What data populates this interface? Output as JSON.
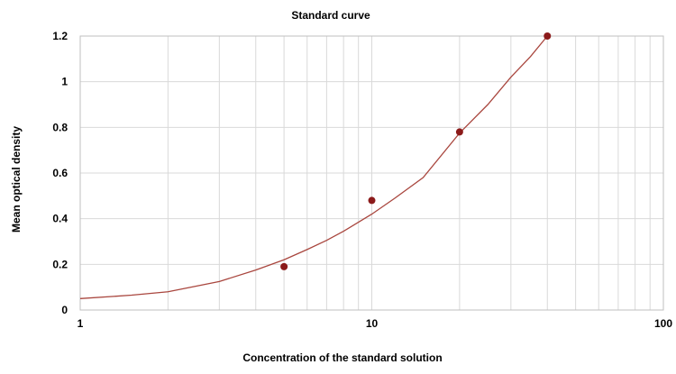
{
  "chart_data": {
    "type": "scatter",
    "title": "Standard curve",
    "xlabel": "Concentration of the standard solution",
    "ylabel": "Mean optical density",
    "x_scale": "log",
    "xlim": [
      1,
      100
    ],
    "ylim": [
      0,
      1.2
    ],
    "x_ticks": [
      1,
      10,
      100
    ],
    "x_tick_labels": [
      "1",
      "10",
      "100"
    ],
    "y_ticks": [
      0,
      0.2,
      0.4,
      0.6,
      0.8,
      1.0,
      1.2
    ],
    "y_tick_labels": [
      "0",
      "0.2",
      "0.4",
      "0.6",
      "0.8",
      "1",
      "1.2"
    ],
    "grid": true,
    "legend": "none",
    "colors": {
      "points": "#8b1a1a",
      "curve": "#a9463e",
      "grid": "#d9d9d9"
    },
    "series": [
      {
        "x": [
          5,
          10,
          20,
          40
        ],
        "y": [
          0.19,
          0.48,
          0.78,
          1.2
        ]
      }
    ],
    "fit_curve": {
      "x": [
        1,
        1.5,
        2,
        3,
        4,
        5,
        6,
        7,
        8,
        10,
        12,
        15,
        20,
        25,
        30,
        35,
        40
      ],
      "y": [
        0.05,
        0.065,
        0.08,
        0.125,
        0.175,
        0.22,
        0.265,
        0.305,
        0.345,
        0.42,
        0.49,
        0.58,
        0.775,
        0.9,
        1.02,
        1.11,
        1.2
      ]
    }
  }
}
